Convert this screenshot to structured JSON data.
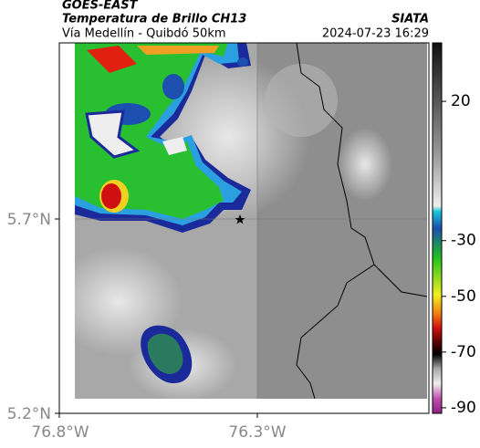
{
  "header": {
    "title": "GOES-EAST",
    "subtitle": "Temperatura de Brillo CH13",
    "route": "Vía Medellín - Quibdó 50km",
    "source": "SIATA",
    "datetime": "2024-07-23 16:29"
  },
  "map": {
    "lat_labels": [
      "5.7°N",
      "5.2°N"
    ],
    "lon_labels": [
      "76.8°W",
      "76.3°W"
    ]
  },
  "colorbar": {
    "lim": [
      -92,
      41
    ],
    "ticks": [
      20,
      -30,
      -50,
      -70,
      -90
    ]
  }
}
